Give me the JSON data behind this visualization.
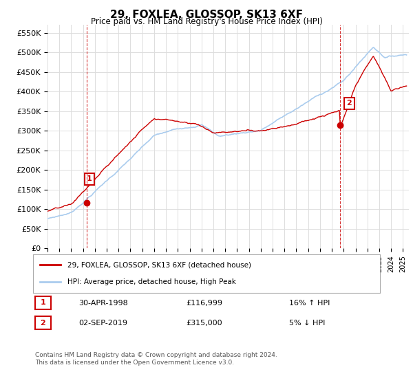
{
  "title": "29, FOXLEA, GLOSSOP, SK13 6XF",
  "subtitle": "Price paid vs. HM Land Registry's House Price Index (HPI)",
  "legend_line1": "29, FOXLEA, GLOSSOP, SK13 6XF (detached house)",
  "legend_line2": "HPI: Average price, detached house, High Peak",
  "table_rows": [
    {
      "num": "1",
      "date": "30-APR-1998",
      "price": "£116,999",
      "hpi": "16% ↑ HPI"
    },
    {
      "num": "2",
      "date": "02-SEP-2019",
      "price": "£315,000",
      "hpi": "5% ↓ HPI"
    }
  ],
  "footnote": "Contains HM Land Registry data © Crown copyright and database right 2024.\nThis data is licensed under the Open Government Licence v3.0.",
  "annotation1": {
    "x_year": 1998.33,
    "y": 116999,
    "label": "1"
  },
  "annotation2": {
    "x_year": 2019.67,
    "y": 315000,
    "label": "2"
  },
  "vline1_x": 1998.33,
  "vline2_x": 2019.67,
  "ylim": [
    0,
    570000
  ],
  "yticks": [
    0,
    50000,
    100000,
    150000,
    200000,
    250000,
    300000,
    350000,
    400000,
    450000,
    500000,
    550000
  ],
  "xlim_start": 1995.0,
  "xlim_end": 2025.5,
  "red_color": "#cc0000",
  "blue_color": "#aaccee",
  "vline_color": "#cc0000",
  "grid_color": "#dddddd",
  "background_color": "#ffffff"
}
